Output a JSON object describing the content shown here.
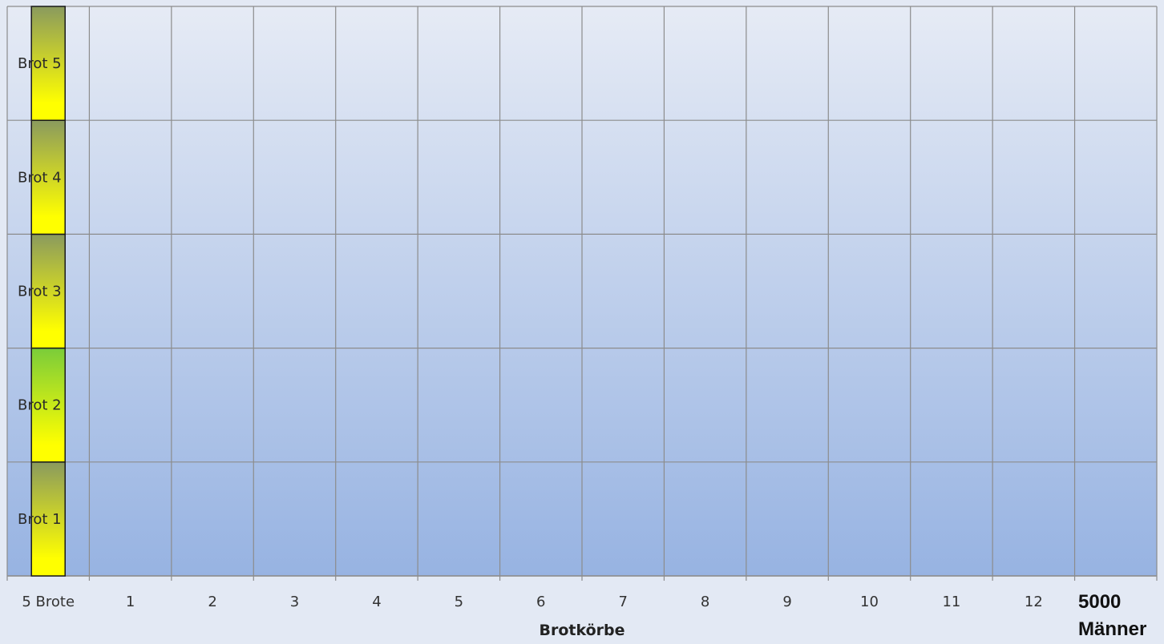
{
  "chart_data": {
    "type": "bar",
    "stacked": true,
    "categories": [
      "5 Brote",
      "1",
      "2",
      "3",
      "4",
      "5",
      "6",
      "7",
      "8",
      "9",
      "10",
      "11",
      "12",
      "5000 Männer"
    ],
    "series": [
      {
        "name": "Brot 1",
        "values": [
          1,
          0,
          0,
          0,
          0,
          0,
          0,
          0,
          0,
          0,
          0,
          0,
          0,
          0
        ]
      },
      {
        "name": "Brot 2",
        "values": [
          1,
          0,
          0,
          0,
          0,
          0,
          0,
          0,
          0,
          0,
          0,
          0,
          0,
          0
        ]
      },
      {
        "name": "Brot 3",
        "values": [
          1,
          0,
          0,
          0,
          0,
          0,
          0,
          0,
          0,
          0,
          0,
          0,
          0,
          0
        ]
      },
      {
        "name": "Brot 4",
        "values": [
          1,
          0,
          0,
          0,
          0,
          0,
          0,
          0,
          0,
          0,
          0,
          0,
          0,
          0
        ]
      },
      {
        "name": "Brot 5",
        "values": [
          1,
          0,
          0,
          0,
          0,
          0,
          0,
          0,
          0,
          0,
          0,
          0,
          0,
          0
        ]
      }
    ],
    "xlabel": "Brotkörbe",
    "ylabel": "",
    "ylim": [
      0,
      5
    ],
    "grid": true,
    "corner_label": [
      "5000",
      "Männer"
    ]
  },
  "colors": {
    "plot_top": "#e6ebf5",
    "plot_bottom": "#97b3e2",
    "grid": "#8c8c8c",
    "bar_yellow": "#ffff00",
    "bar_green_1": "#8a9a5e",
    "bar_green_2": "#7acc3a",
    "bar_outline": "#1a1a1a"
  }
}
